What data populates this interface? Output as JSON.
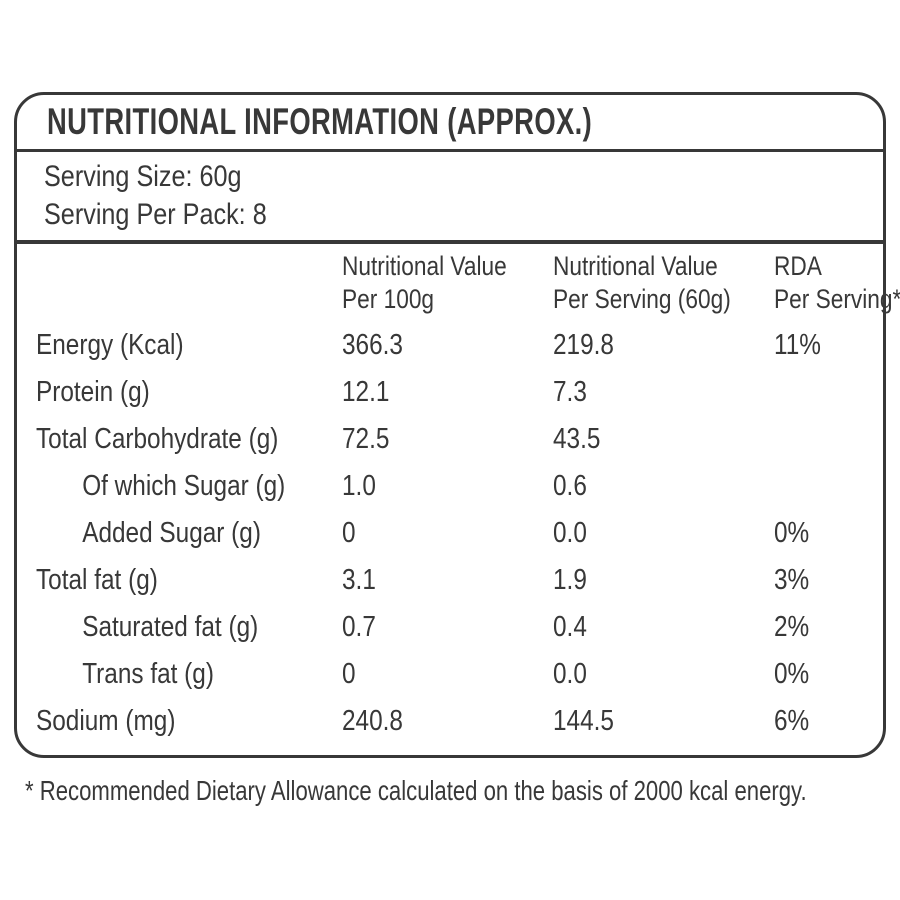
{
  "colors": {
    "text": "#383838",
    "border": "#383838",
    "background": "#ffffff"
  },
  "label": {
    "title": "NUTRITIONAL INFORMATION (APPROX.)",
    "serving_size": "Serving Size: 60g",
    "serving_per_pack": "Serving Per Pack: 8",
    "footnote": "* Recommended Dietary Allowance calculated on the basis of 2000 kcal energy."
  },
  "table": {
    "columns": [
      {
        "line1": "Nutritional Value",
        "line2": "Per 100g"
      },
      {
        "line1": "Nutritional Value",
        "line2": "Per Serving (60g)"
      },
      {
        "line1": "RDA",
        "line2": "Per Serving*"
      }
    ],
    "rows": [
      {
        "label": "Energy (Kcal)",
        "indent": false,
        "per_100g": "366.3",
        "per_serving": "219.8",
        "rda": "11%"
      },
      {
        "label": "Protein (g)",
        "indent": false,
        "per_100g": "12.1",
        "per_serving": "7.3",
        "rda": ""
      },
      {
        "label": "Total Carbohydrate (g)",
        "indent": false,
        "per_100g": "72.5",
        "per_serving": "43.5",
        "rda": ""
      },
      {
        "label": "Of which Sugar (g)",
        "indent": true,
        "per_100g": "1.0",
        "per_serving": "0.6",
        "rda": ""
      },
      {
        "label": "Added Sugar (g)",
        "indent": true,
        "per_100g": "0",
        "per_serving": "0.0",
        "rda": "0%"
      },
      {
        "label": "Total fat (g)",
        "indent": false,
        "per_100g": "3.1",
        "per_serving": "1.9",
        "rda": "3%"
      },
      {
        "label": "Saturated fat (g)",
        "indent": true,
        "per_100g": "0.7",
        "per_serving": "0.4",
        "rda": "2%"
      },
      {
        "label": "Trans fat (g)",
        "indent": true,
        "per_100g": "0",
        "per_serving": "0.0",
        "rda": "0%"
      },
      {
        "label": "Sodium (mg)",
        "indent": false,
        "per_100g": "240.8",
        "per_serving": "144.5",
        "rda": "6%"
      }
    ]
  }
}
